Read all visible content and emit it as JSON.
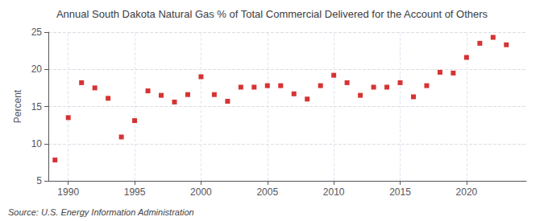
{
  "chart_data": {
    "type": "scatter",
    "title": "Annual South Dakota Natural Gas % of Total Commercial Delivered for the Account of Others",
    "ylabel": "Percent",
    "annotations": [
      "Source: U.S. Energy Information Administration"
    ],
    "x": [
      1989,
      1990,
      1991,
      1992,
      1993,
      1994,
      1995,
      1996,
      1997,
      1998,
      1999,
      2000,
      2001,
      2002,
      2003,
      2004,
      2005,
      2006,
      2007,
      2008,
      2009,
      2010,
      2011,
      2012,
      2013,
      2014,
      2015,
      2016,
      2017,
      2018,
      2019,
      2020,
      2021,
      2022,
      2023
    ],
    "values": [
      7.8,
      13.5,
      18.2,
      17.5,
      16.1,
      10.9,
      13.1,
      17.1,
      16.5,
      15.6,
      16.6,
      19.0,
      16.6,
      15.7,
      17.6,
      17.6,
      17.8,
      17.8,
      16.7,
      16.0,
      17.8,
      19.2,
      18.2,
      16.5,
      17.6,
      17.6,
      18.2,
      16.3,
      17.8,
      19.6,
      19.5,
      21.6,
      23.5,
      24.3,
      23.3
    ],
    "color": "#cc0000",
    "marker": "square",
    "xlim": [
      1988.5,
      2024.5
    ],
    "xticks": [
      1990,
      1995,
      2000,
      2005,
      2010,
      2015,
      2020
    ],
    "ylim": [
      5,
      25
    ],
    "yticks": [
      5,
      10,
      15,
      20,
      25
    ],
    "grid": true
  }
}
